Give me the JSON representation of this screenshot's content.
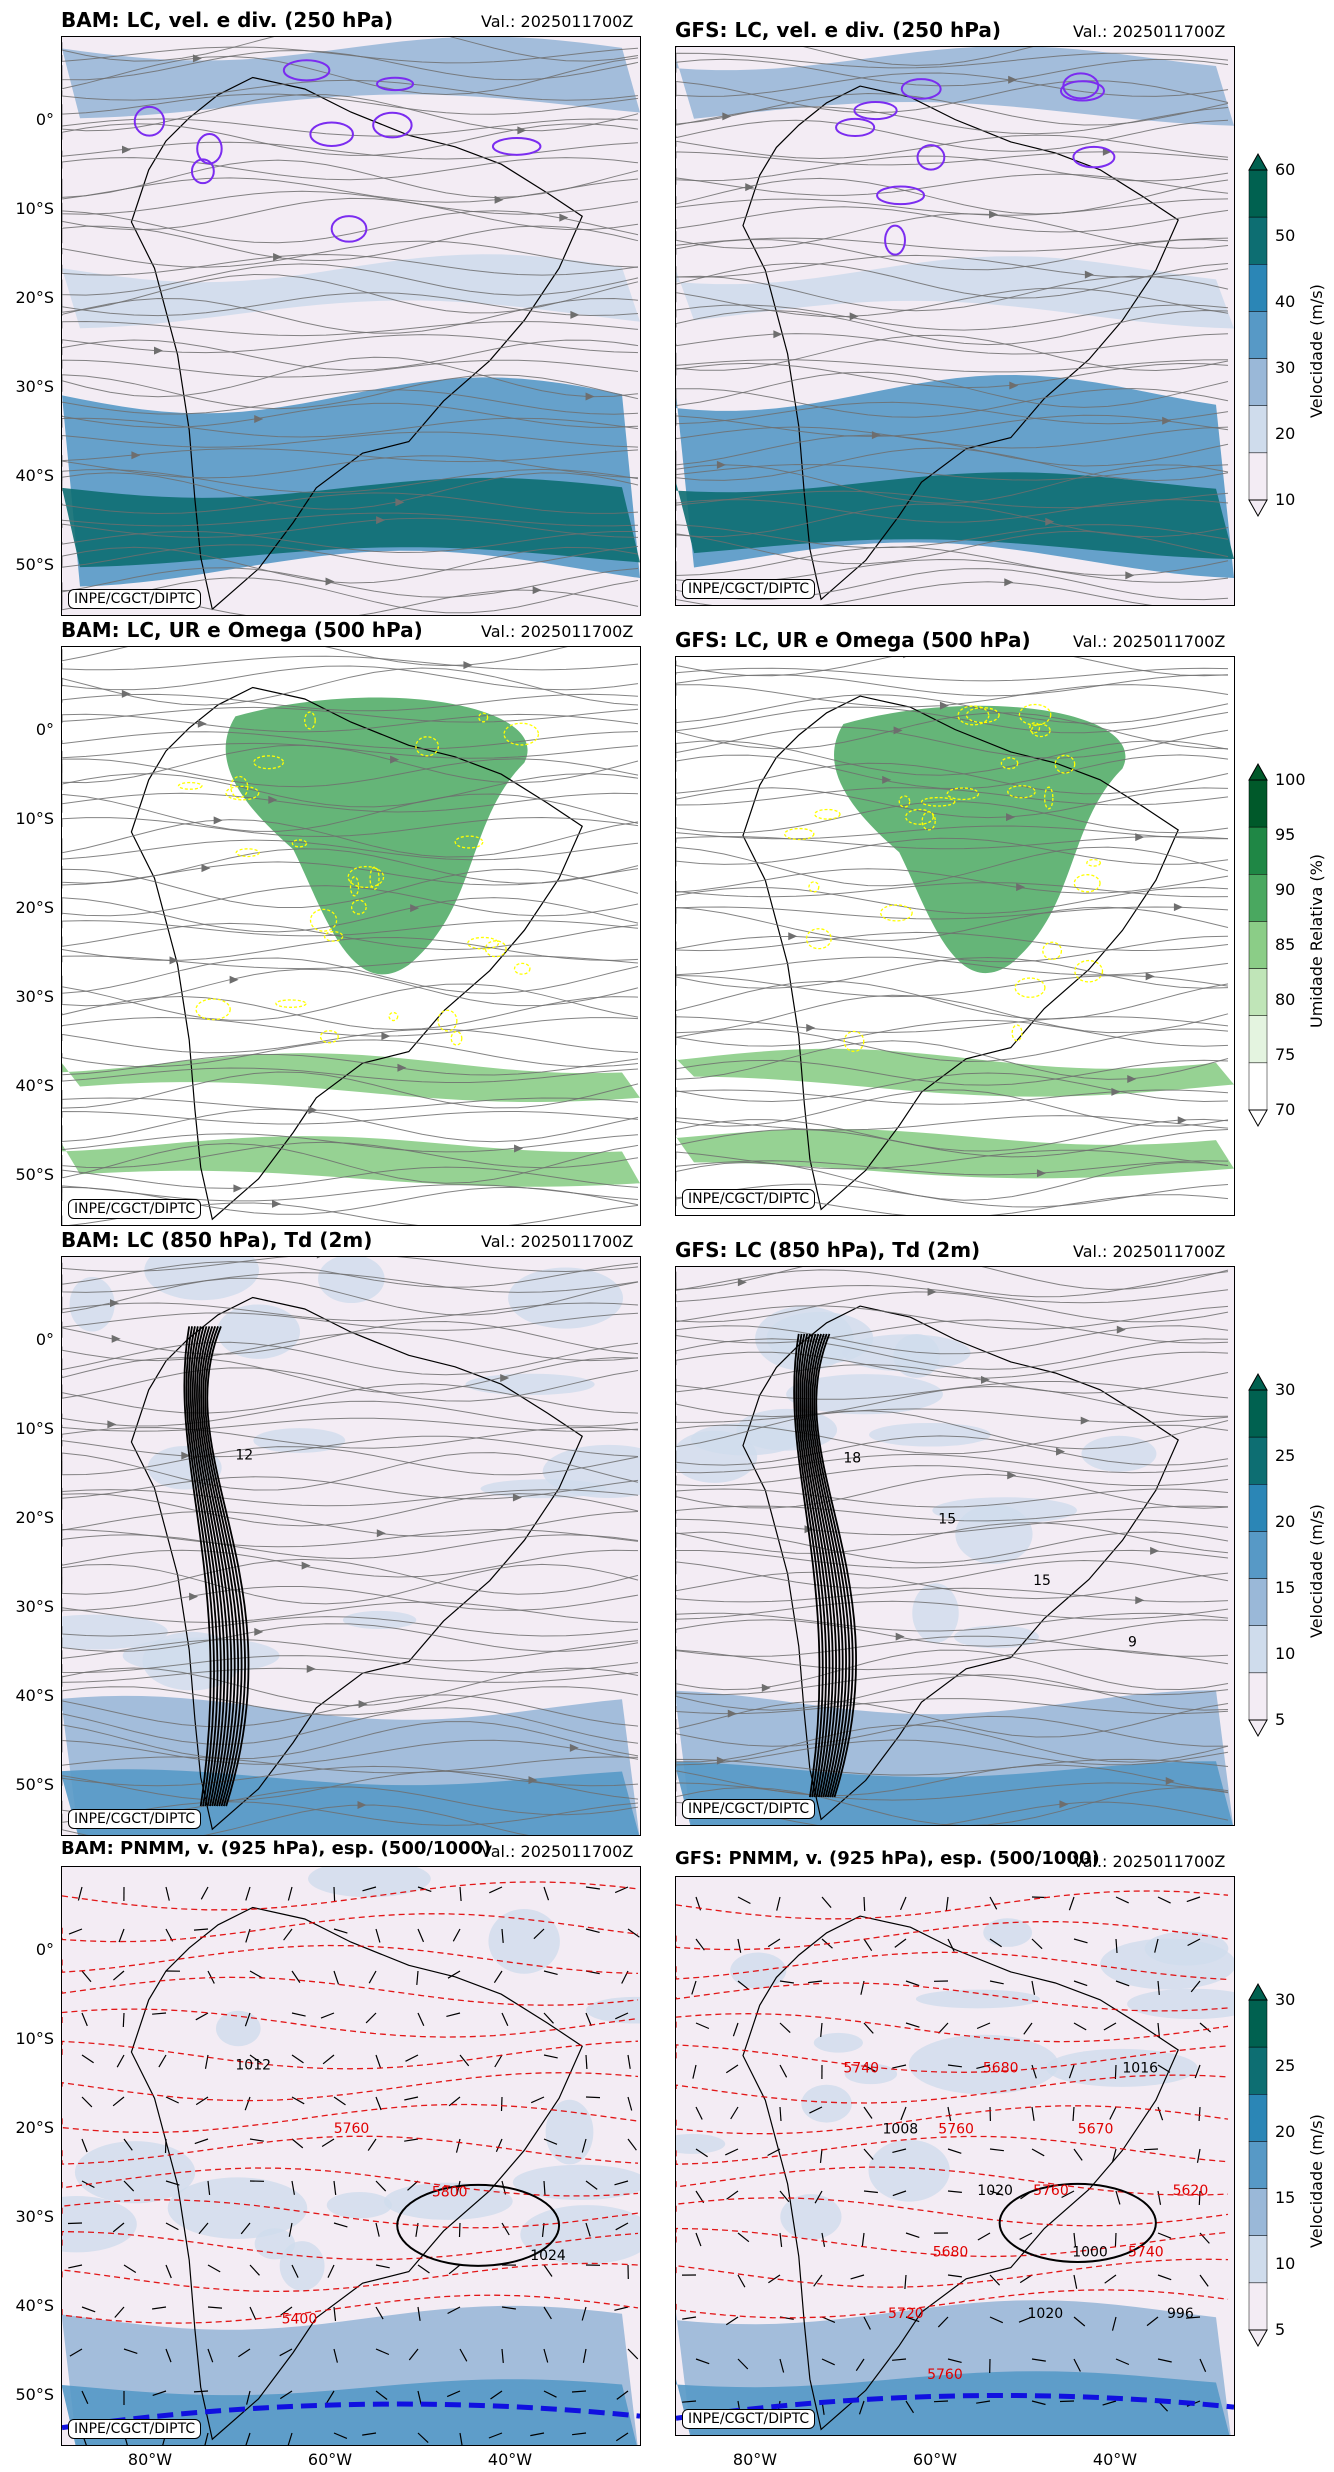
{
  "valid_text": "Val.: 2025011700Z",
  "credit": "INPE/CGCT/DIPTC",
  "lat_ticks": [
    "0°",
    "10°S",
    "20°S",
    "30°S",
    "40°S",
    "50°S"
  ],
  "lon_ticks": [
    "80°W",
    "60°W",
    "40°W"
  ],
  "colors": {
    "vel_scale": [
      "#f3ecf4",
      "#cfdcec",
      "#9ab8d8",
      "#5799c6",
      "#2b86b6",
      "#0d6e72",
      "#006150"
    ],
    "rh_scale": [
      "#ffffff",
      "#e4f4e0",
      "#c0e5b8",
      "#8bcd87",
      "#4aa860",
      "#1f8745",
      "#00592a"
    ],
    "streamline": "#6e6e6e",
    "div_contour": "#7b2cf0",
    "omega_contour": "#ffff00",
    "thickness_contour": "#e00000",
    "pressure_contour": "#000000"
  },
  "panels": [
    {
      "id": "bam-250",
      "title": "BAM: LC, vel. e div. (250 hPa)"
    },
    {
      "id": "gfs-250",
      "title": "GFS: LC, vel. e div. (250 hPa)"
    },
    {
      "id": "bam-500",
      "title": "BAM: LC, UR e Omega (500 hPa)"
    },
    {
      "id": "gfs-500",
      "title": "GFS: LC, UR e Omega (500 hPa)"
    },
    {
      "id": "bam-850",
      "title": "BAM: LC (850 hPa), Td (2m)"
    },
    {
      "id": "gfs-850",
      "title": "GFS: LC (850 hPa), Td (2m)"
    },
    {
      "id": "bam-925",
      "title": "BAM: PNMM, v. (925 hPa), esp. (500/1000)"
    },
    {
      "id": "gfs-925",
      "title": "GFS: PNMM, v. (925 hPa), esp. (500/1000)"
    }
  ],
  "colorbars": [
    {
      "label": "Velocidade (m/s)",
      "ticks": [
        "10",
        "20",
        "30",
        "40",
        "50",
        "60"
      ],
      "scale": "vel_scale"
    },
    {
      "label": "Umidade Relativa (%)",
      "ticks": [
        "70",
        "75",
        "80",
        "85",
        "90",
        "95",
        "100"
      ],
      "scale": "rh_scale"
    },
    {
      "label": "Velocidade (m/s)",
      "ticks": [
        "5",
        "10",
        "15",
        "20",
        "25",
        "30"
      ],
      "scale": "vel_scale"
    },
    {
      "label": "Velocidade (m/s)",
      "ticks": [
        "5",
        "10",
        "15",
        "20",
        "25",
        "30"
      ],
      "scale": "vel_scale"
    }
  ],
  "contour_labels": {
    "bam-850": [
      "12"
    ],
    "gfs-850": [
      "18",
      "15",
      "15",
      "9"
    ],
    "bam-925": [
      "1012",
      "5760",
      "5800",
      "1024",
      "5400"
    ],
    "gfs-925": [
      "5740",
      "5760",
      "5760",
      "5740",
      "5720",
      "5680",
      "5670",
      "5620",
      "5680",
      "1020",
      "1016",
      "1008",
      "1020",
      "1000",
      "996",
      "5760"
    ]
  },
  "chart_data": [
    {
      "type": "heatmap",
      "title": "BAM: LC, vel. e div. (250 hPa)",
      "variable": "Velocidade (m/s)",
      "levels": [
        10,
        20,
        30,
        40,
        50,
        60
      ],
      "lat_range": [
        "55°S",
        "9°N"
      ],
      "lon_range": [
        "93°W",
        "28°W"
      ]
    },
    {
      "type": "heatmap",
      "title": "GFS: LC, vel. e div. (250 hPa)",
      "variable": "Velocidade (m/s)",
      "levels": [
        10,
        20,
        30,
        40,
        50,
        60
      ]
    },
    {
      "type": "heatmap",
      "title": "BAM: LC, UR e Omega (500 hPa)",
      "variable": "Umidade Relativa (%)",
      "levels": [
        70,
        75,
        80,
        85,
        90,
        95,
        100
      ]
    },
    {
      "type": "heatmap",
      "title": "GFS: LC, UR e Omega (500 hPa)",
      "variable": "Umidade Relativa (%)",
      "levels": [
        70,
        75,
        80,
        85,
        90,
        95,
        100
      ]
    },
    {
      "type": "heatmap",
      "title": "BAM: LC (850 hPa), Td (2m)",
      "variable": "Velocidade (m/s)",
      "levels": [
        5,
        10,
        15,
        20,
        25,
        30
      ]
    },
    {
      "type": "heatmap",
      "title": "GFS: LC (850 hPa), Td (2m)",
      "variable": "Velocidade (m/s)",
      "levels": [
        5,
        10,
        15,
        20,
        25,
        30
      ]
    },
    {
      "type": "heatmap",
      "title": "BAM: PNMM, v. (925 hPa), esp. (500/1000)",
      "variable": "Velocidade (m/s)",
      "levels": [
        5,
        10,
        15,
        20,
        25,
        30
      ]
    },
    {
      "type": "heatmap",
      "title": "GFS: PNMM, v. (925 hPa), esp. (500/1000)",
      "variable": "Velocidade (m/s)",
      "levels": [
        5,
        10,
        15,
        20,
        25,
        30
      ]
    }
  ]
}
